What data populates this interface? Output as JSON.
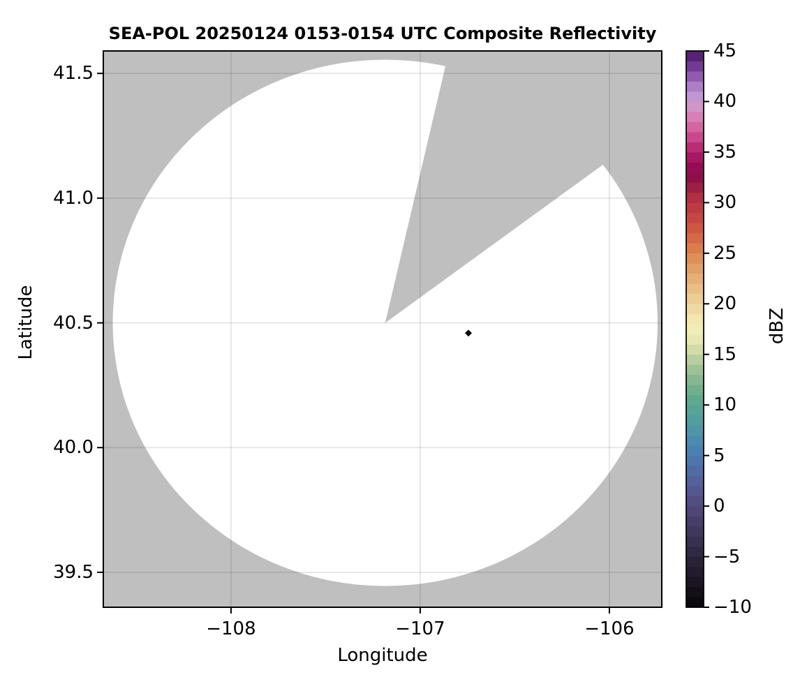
{
  "figure": {
    "background": "#ffffff"
  },
  "chart_data": {
    "type": "heatmap",
    "title": "SEA-POL 20250124 0153-0154 UTC Composite Reflectivity",
    "xlabel": "Longitude",
    "ylabel": "Latitude",
    "xlim": [
      -108.675,
      -105.723
    ],
    "ylim": [
      39.36,
      41.59
    ],
    "grid": true,
    "background_color": "#bfbfbf",
    "gridline_color": "rgba(0,0,0,0.10)",
    "x_ticks": [
      {
        "value": -108,
        "label": "−108"
      },
      {
        "value": -107,
        "label": "−107"
      },
      {
        "value": -106,
        "label": "−106"
      }
    ],
    "y_ticks": [
      {
        "value": 41.5,
        "label": "41.5"
      },
      {
        "value": 41.0,
        "label": "41.0"
      },
      {
        "value": 40.5,
        "label": "40.5"
      },
      {
        "value": 40.0,
        "label": "40.0"
      },
      {
        "value": 39.5,
        "label": "39.5"
      }
    ],
    "coverage": {
      "center_lon": -107.185,
      "center_lat": 40.5,
      "radius_lon_deg": 1.44,
      "radius_lat_deg": 1.055,
      "fill": "#ffffff",
      "missing_sector_azimuth_deg": [
        13.2,
        54.0
      ]
    },
    "echoes": [
      {
        "lon": -106.745,
        "lat": 40.459,
        "dbz": -9.5,
        "half_size_px": 5
      }
    ],
    "colorbar": {
      "label": "dBZ",
      "min": -10,
      "max": 45,
      "bands": 55,
      "ticks": [
        {
          "value": 45,
          "label": "45"
        },
        {
          "value": 40,
          "label": "40"
        },
        {
          "value": 35,
          "label": "35"
        },
        {
          "value": 30,
          "label": "30"
        },
        {
          "value": 25,
          "label": "25"
        },
        {
          "value": 20,
          "label": "20"
        },
        {
          "value": 15,
          "label": "15"
        },
        {
          "value": 10,
          "label": "10"
        },
        {
          "value": 5,
          "label": "5"
        },
        {
          "value": 0,
          "label": "0"
        },
        {
          "value": -5,
          "label": "−5"
        },
        {
          "value": -10,
          "label": "−10"
        }
      ],
      "stops": [
        {
          "v": -10,
          "c": "#060507"
        },
        {
          "v": -9,
          "c": "#0e0c12"
        },
        {
          "v": -8,
          "c": "#16121c"
        },
        {
          "v": -7,
          "c": "#1d1826"
        },
        {
          "v": -6,
          "c": "#251e31"
        },
        {
          "v": -5,
          "c": "#2c253d"
        },
        {
          "v": -4,
          "c": "#342c49"
        },
        {
          "v": -3,
          "c": "#3b3356"
        },
        {
          "v": -2,
          "c": "#433a62"
        },
        {
          "v": -1,
          "c": "#4b426f"
        },
        {
          "v": 0,
          "c": "#514a79"
        },
        {
          "v": 1,
          "c": "#555288"
        },
        {
          "v": 2,
          "c": "#555c96"
        },
        {
          "v": 3,
          "c": "#5366a1"
        },
        {
          "v": 4,
          "c": "#4f70a9"
        },
        {
          "v": 5,
          "c": "#4b7bb0"
        },
        {
          "v": 6,
          "c": "#4a86b0"
        },
        {
          "v": 7,
          "c": "#4d90ab"
        },
        {
          "v": 8,
          "c": "#5099a2"
        },
        {
          "v": 9,
          "c": "#54a09a"
        },
        {
          "v": 10,
          "c": "#59a590"
        },
        {
          "v": 11,
          "c": "#66ab8d"
        },
        {
          "v": 12,
          "c": "#79b28f"
        },
        {
          "v": 13,
          "c": "#90bb94"
        },
        {
          "v": 14,
          "c": "#abc79b"
        },
        {
          "v": 15,
          "c": "#c6d4a4"
        },
        {
          "v": 16,
          "c": "#dfe2ae"
        },
        {
          "v": 17,
          "c": "#f0ecb7"
        },
        {
          "v": 18,
          "c": "#f4edb4"
        },
        {
          "v": 19,
          "c": "#f1dfa7"
        },
        {
          "v": 20,
          "c": "#eed49e"
        },
        {
          "v": 21,
          "c": "#ebc68f"
        },
        {
          "v": 22,
          "c": "#e7b77f"
        },
        {
          "v": 23,
          "c": "#e3a76f"
        },
        {
          "v": 24,
          "c": "#df985f"
        },
        {
          "v": 25,
          "c": "#dc8751"
        },
        {
          "v": 26,
          "c": "#d87347"
        },
        {
          "v": 27,
          "c": "#d25f45"
        },
        {
          "v": 28,
          "c": "#ca4c44"
        },
        {
          "v": 29,
          "c": "#c23f43"
        },
        {
          "v": 30,
          "c": "#b83742"
        },
        {
          "v": 31,
          "c": "#a62a43"
        },
        {
          "v": 32,
          "c": "#911646"
        },
        {
          "v": 33,
          "c": "#8b0a4d"
        },
        {
          "v": 34,
          "c": "#9c0f5b"
        },
        {
          "v": 35,
          "c": "#b2206c"
        },
        {
          "v": 36,
          "c": "#c23a80"
        },
        {
          "v": 37,
          "c": "#cf5795"
        },
        {
          "v": 38,
          "c": "#d674aa"
        },
        {
          "v": 39,
          "c": "#d78cc0"
        },
        {
          "v": 40,
          "c": "#cb9dd2"
        },
        {
          "v": 41,
          "c": "#b890cf"
        },
        {
          "v": 42,
          "c": "#9e6cbb"
        },
        {
          "v": 43,
          "c": "#8247a3"
        },
        {
          "v": 44,
          "c": "#652a85"
        },
        {
          "v": 45,
          "c": "#481964"
        }
      ]
    }
  }
}
